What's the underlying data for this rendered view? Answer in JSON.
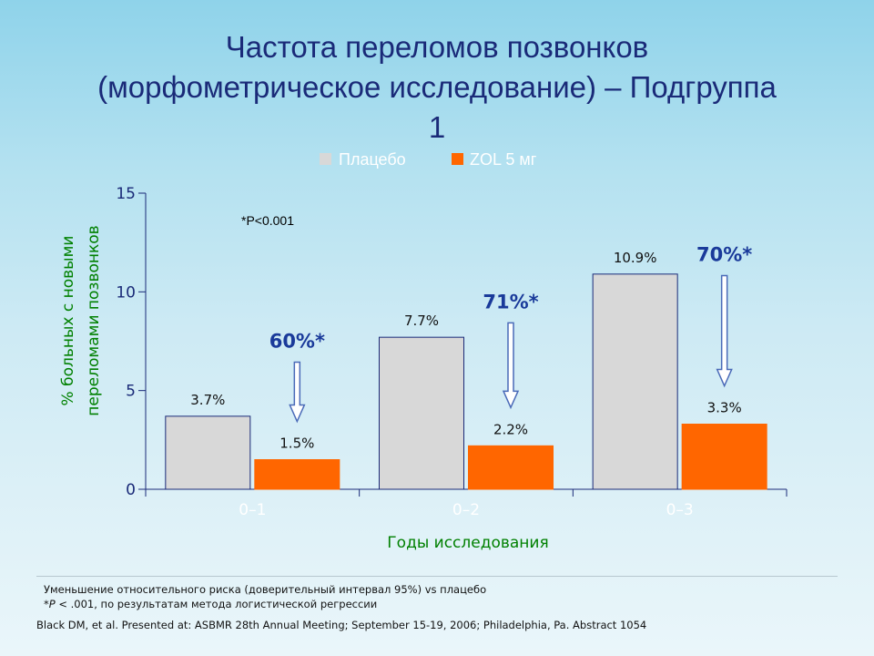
{
  "title": {
    "line1": "Частота переломов позвонков",
    "line2": "(морфометрическое исследование) – Подгруппа",
    "line3": "1"
  },
  "chart_data": {
    "type": "bar",
    "categories": [
      "0–1",
      "0–2",
      "0–3"
    ],
    "series": [
      {
        "name": "Плацебо",
        "values": [
          3.7,
          7.7,
          10.9
        ],
        "labels": [
          "3.7%",
          "7.7%",
          "10.9%"
        ],
        "color": "#d8d8d8"
      },
      {
        "name": "ZOL 5 мг",
        "values": [
          1.5,
          2.2,
          3.3
        ],
        "labels": [
          "1.5%",
          "2.2%",
          "3.3%"
        ],
        "color": "#ff6600"
      }
    ],
    "ylabel_line1": "% больных с новыми",
    "ylabel_line2": "переломами позвонков",
    "xlabel": "Годы исследования",
    "ylim": [
      0,
      15
    ],
    "yticks": [
      0,
      5,
      10,
      15
    ],
    "legend_position": "top",
    "annotation": "*P<0.001",
    "reductions": [
      "60%*",
      "71%*",
      "70%*"
    ],
    "colors": {
      "axis_label": "#008000",
      "reduction": "#1a3a9a",
      "arrow": "#4a6ab8",
      "tick": "#1a2a78"
    }
  },
  "footnote": {
    "line1": "Уменьшение относительного риска (доверительный интервал 95%) vs плацебо",
    "line2_prefix": "*P",
    "line2_rest": " < .001, по результатам метода логистической регрессии"
  },
  "citation": "Black DM, et al. Presented at: ASBMR 28th Annual Meeting; September 15-19, 2006; Philadelphia, Pa. Abstract 1054"
}
